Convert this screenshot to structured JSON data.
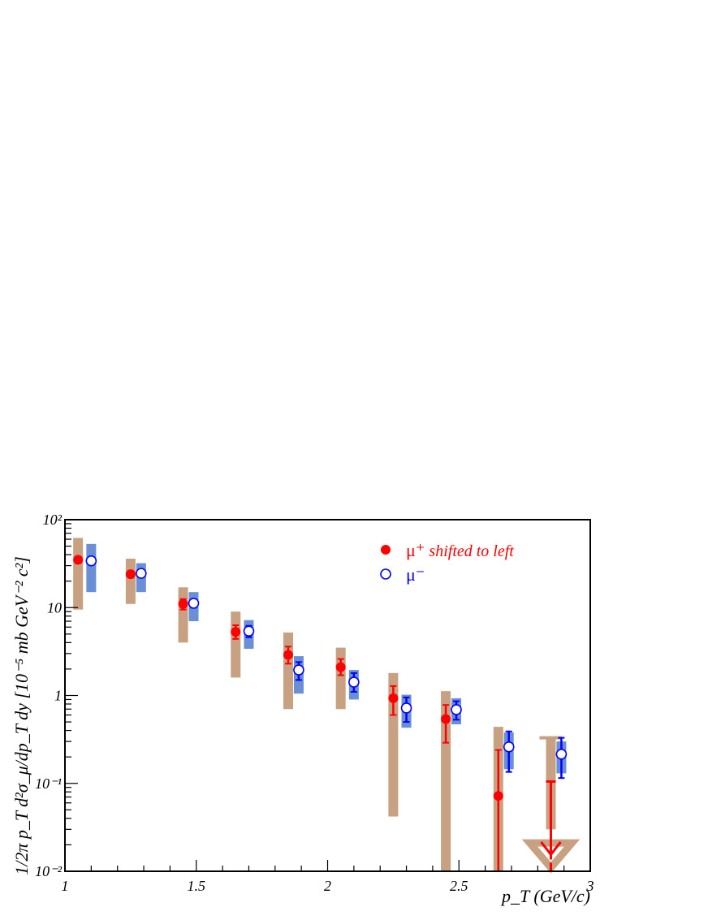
{
  "chart_data": {
    "type": "scatter",
    "title": "",
    "xlabel": "p_T (GeV/c)",
    "ylabel": "1/2π p_T d²σ_μ/dp_T dy [10⁻⁵ mb GeV⁻² c²]",
    "xlim": [
      1,
      3
    ],
    "ylim": [
      0.01,
      100
    ],
    "yscale": "log",
    "x_ticks": [
      1,
      1.5,
      2,
      2.5,
      3
    ],
    "x_tick_labels": [
      "1",
      "1.5",
      "2",
      "2.5",
      "3"
    ],
    "y_ticks": [
      0.01,
      0.1,
      1,
      10,
      100
    ],
    "y_tick_labels": [
      "10⁻²",
      "10⁻¹",
      "1",
      "10",
      "10²"
    ],
    "grid": false,
    "legend_position": "top-right",
    "series": [
      {
        "name": "μ⁺ shifted to left",
        "marker": "filled-circle",
        "color": "#ff0000",
        "sys_color": "#c8a082",
        "points": [
          {
            "x": 1.05,
            "y": 35,
            "stat_lo": 32,
            "stat_hi": 38,
            "sys_lo": 9.5,
            "sys_hi": 62
          },
          {
            "x": 1.25,
            "y": 24,
            "stat_lo": 22,
            "stat_hi": 26,
            "sys_lo": 11,
            "sys_hi": 36
          },
          {
            "x": 1.45,
            "y": 11,
            "stat_lo": 9.5,
            "stat_hi": 12.5,
            "sys_lo": 4,
            "sys_hi": 17
          },
          {
            "x": 1.65,
            "y": 5.3,
            "stat_lo": 4.4,
            "stat_hi": 6.3,
            "sys_lo": 1.6,
            "sys_hi": 9
          },
          {
            "x": 1.85,
            "y": 2.9,
            "stat_lo": 2.3,
            "stat_hi": 3.6,
            "sys_lo": 0.7,
            "sys_hi": 5.2
          },
          {
            "x": 2.05,
            "y": 2.1,
            "stat_lo": 1.7,
            "stat_hi": 2.6,
            "sys_lo": 0.7,
            "sys_hi": 3.5
          },
          {
            "x": 2.25,
            "y": 0.93,
            "stat_lo": 0.6,
            "stat_hi": 1.28,
            "sys_lo": 0.042,
            "sys_hi": 1.8
          },
          {
            "x": 2.45,
            "y": 0.54,
            "stat_lo": 0.29,
            "stat_hi": 0.78,
            "sys_lo": 0.01,
            "sys_hi": 1.12
          },
          {
            "x": 2.65,
            "y": 0.072,
            "stat_lo": 0.01,
            "stat_hi": 0.24,
            "sys_lo": 0.01,
            "sys_hi": 0.44
          }
        ],
        "upper_limit": {
          "x": 2.85,
          "y_top": 0.105,
          "y_bottom": 0.01,
          "sys_top": 0.33
        }
      },
      {
        "name": "μ⁻",
        "marker": "open-circle",
        "color": "#0000ff",
        "sys_color": "#6a8fd4",
        "points": [
          {
            "x": 1.1,
            "y": 34,
            "stat_lo": 31,
            "stat_hi": 37,
            "sys_lo": 15,
            "sys_hi": 53
          },
          {
            "x": 1.29,
            "y": 24.5,
            "stat_lo": 22.5,
            "stat_hi": 26.5,
            "sys_lo": 15,
            "sys_hi": 32
          },
          {
            "x": 1.49,
            "y": 11.2,
            "stat_lo": 10,
            "stat_hi": 12.4,
            "sys_lo": 7,
            "sys_hi": 15
          },
          {
            "x": 1.7,
            "y": 5.4,
            "stat_lo": 4.6,
            "stat_hi": 6.2,
            "sys_lo": 3.4,
            "sys_hi": 7.2
          },
          {
            "x": 1.89,
            "y": 1.95,
            "stat_lo": 1.5,
            "stat_hi": 2.4,
            "sys_lo": 1.05,
            "sys_hi": 2.8
          },
          {
            "x": 2.1,
            "y": 1.42,
            "stat_lo": 1.1,
            "stat_hi": 1.8,
            "sys_lo": 0.9,
            "sys_hi": 1.95
          },
          {
            "x": 2.3,
            "y": 0.72,
            "stat_lo": 0.5,
            "stat_hi": 0.95,
            "sys_lo": 0.43,
            "sys_hi": 1.02
          },
          {
            "x": 2.49,
            "y": 0.69,
            "stat_lo": 0.53,
            "stat_hi": 0.86,
            "sys_lo": 0.47,
            "sys_hi": 0.93
          },
          {
            "x": 2.69,
            "y": 0.26,
            "stat_lo": 0.135,
            "stat_hi": 0.39,
            "sys_lo": 0.145,
            "sys_hi": 0.38
          },
          {
            "x": 2.89,
            "y": 0.215,
            "stat_lo": 0.115,
            "stat_hi": 0.33,
            "sys_lo": 0.13,
            "sys_hi": 0.3
          }
        ]
      }
    ],
    "legend": [
      {
        "label": "μ⁺",
        "label_suffix": "shifted to left",
        "marker": "filled-circle",
        "color": "#ff0000"
      },
      {
        "label": "μ⁻",
        "marker": "open-circle",
        "color": "#0000ff"
      }
    ]
  }
}
